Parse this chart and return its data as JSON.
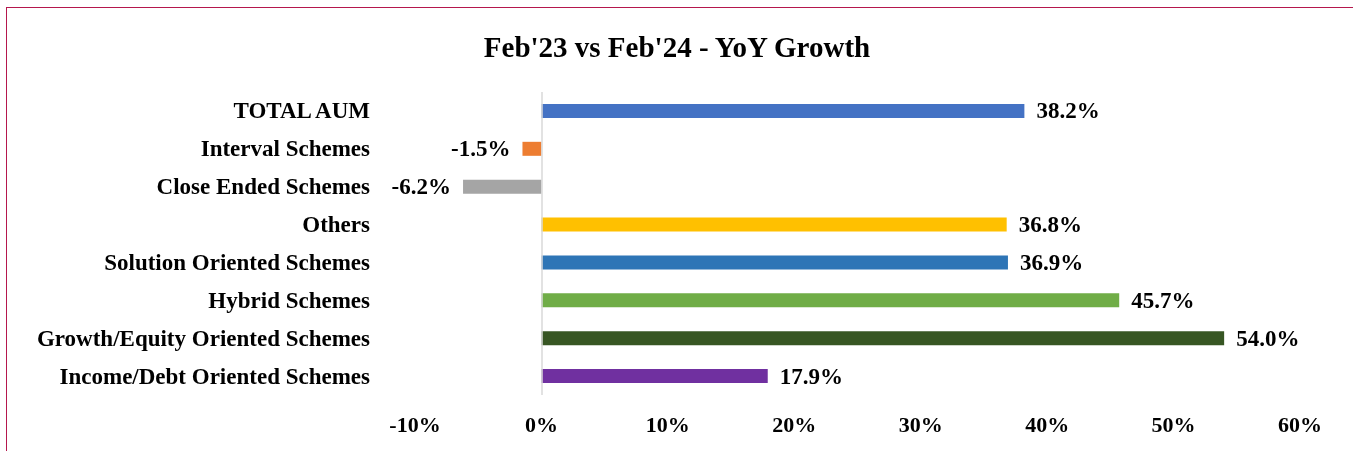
{
  "chart_data": {
    "type": "bar",
    "orientation": "horizontal",
    "title": "Feb'23 vs Feb'24 - YoY Growth",
    "categories": [
      "TOTAL AUM",
      "Interval Schemes",
      "Close Ended Schemes",
      "Others",
      "Solution Oriented Schemes",
      "Hybrid Schemes",
      "Growth/Equity Oriented Schemes",
      "Income/Debt Oriented Schemes"
    ],
    "values": [
      38.2,
      -1.5,
      -6.2,
      36.8,
      36.9,
      45.7,
      54.0,
      17.9
    ],
    "colors": [
      "#4472c4",
      "#ed7d31",
      "#a5a5a5",
      "#ffc000",
      "#2e75b6",
      "#70ad47",
      "#375623",
      "#7030a0"
    ],
    "value_labels": [
      "38.2%",
      "-1.5%",
      "-6.2%",
      "36.8%",
      "36.9%",
      "45.7%",
      "54.0%",
      "17.9%"
    ],
    "xlim": [
      -10,
      60
    ],
    "xticks": [
      {
        "value": -10,
        "label": "-10%"
      },
      {
        "value": 0,
        "label": "0%"
      },
      {
        "value": 10,
        "label": "10%"
      },
      {
        "value": 20,
        "label": "20%"
      },
      {
        "value": 30,
        "label": "30%"
      },
      {
        "value": 40,
        "label": "40%"
      },
      {
        "value": 50,
        "label": "50%"
      },
      {
        "value": 60,
        "label": "60%"
      }
    ],
    "ref_lines": [
      {
        "axis": "x",
        "value": 0,
        "color": "#d9d9d9"
      }
    ],
    "grid": false
  }
}
